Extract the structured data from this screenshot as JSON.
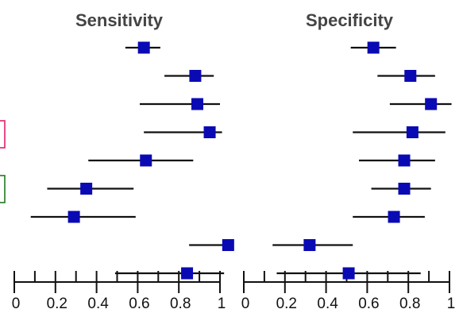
{
  "colors": {
    "point": "#0a0ab4",
    "ci": "#111111",
    "row_box_pink": "#e0206e",
    "row_box_green": "#1f7a1f"
  },
  "chart_data": [
    {
      "type": "forest",
      "title": "Sensitivity",
      "xlabel": "",
      "ylabel": "",
      "xlim": [
        0,
        1
      ],
      "xticks": [
        "0",
        "0.2",
        "0.4",
        "0.6",
        "0.8",
        "1"
      ],
      "grid": false,
      "rows": [
        {
          "estimate": 0.63,
          "lower": 0.54,
          "upper": 0.71
        },
        {
          "estimate": 0.88,
          "lower": 0.73,
          "upper": 0.97
        },
        {
          "estimate": 0.89,
          "lower": 0.61,
          "upper": 1.0
        },
        {
          "estimate": 0.95,
          "lower": 0.63,
          "upper": 1.01
        },
        {
          "estimate": 0.64,
          "lower": 0.36,
          "upper": 0.87
        },
        {
          "estimate": 0.35,
          "lower": 0.16,
          "upper": 0.58
        },
        {
          "estimate": 0.29,
          "lower": 0.08,
          "upper": 0.59
        },
        {
          "estimate": 1.04,
          "lower": 0.85,
          "upper": 1.04
        },
        {
          "estimate": 0.84,
          "lower": 0.49,
          "upper": 1.02
        }
      ]
    },
    {
      "type": "forest",
      "title": "Specificity",
      "xlabel": "",
      "ylabel": "",
      "xlim": [
        0,
        1
      ],
      "xticks": [
        "0",
        "0.2",
        "0.4",
        "0.6",
        "0.8",
        "1"
      ],
      "grid": false,
      "rows": [
        {
          "estimate": 0.63,
          "lower": 0.52,
          "upper": 0.74
        },
        {
          "estimate": 0.81,
          "lower": 0.65,
          "upper": 0.93
        },
        {
          "estimate": 0.91,
          "lower": 0.71,
          "upper": 1.01
        },
        {
          "estimate": 0.82,
          "lower": 0.53,
          "upper": 0.98
        },
        {
          "estimate": 0.78,
          "lower": 0.56,
          "upper": 0.93
        },
        {
          "estimate": 0.78,
          "lower": 0.62,
          "upper": 0.91
        },
        {
          "estimate": 0.73,
          "lower": 0.53,
          "upper": 0.88
        },
        {
          "estimate": 0.32,
          "lower": 0.14,
          "upper": 0.53
        },
        {
          "estimate": 0.51,
          "lower": 0.16,
          "upper": 0.86
        }
      ]
    }
  ]
}
